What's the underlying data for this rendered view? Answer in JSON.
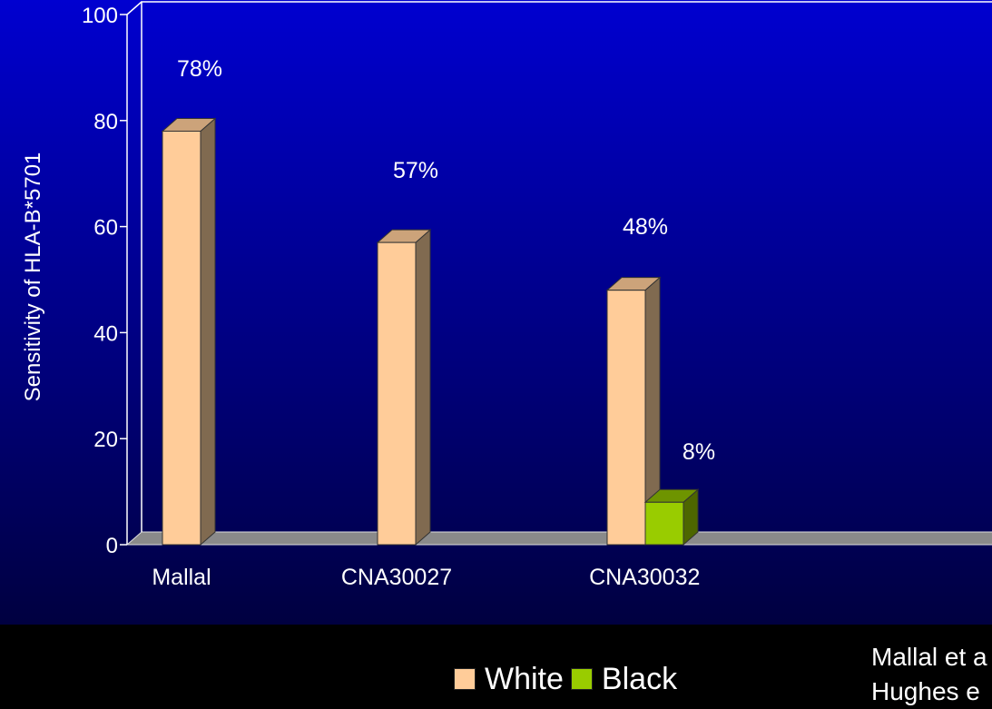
{
  "chart_data": {
    "type": "bar",
    "categories": [
      "Mallal",
      "CNA30027",
      "CNA30032"
    ],
    "series": [
      {
        "name": "White",
        "values": [
          78,
          57,
          48
        ],
        "color": "#FFCC99"
      },
      {
        "name": "Black",
        "values": [
          null,
          null,
          8
        ],
        "color": "#99CC00"
      }
    ],
    "data_labels": [
      "78%",
      "57%",
      "48%",
      "8%"
    ],
    "ylabel": "Sensitivity of HLA-B*5701",
    "xlabel": "",
    "yticks": [
      0,
      20,
      40,
      60,
      80,
      100
    ],
    "ylim": [
      0,
      100
    ],
    "grid": false,
    "legend_position": "bottom",
    "style": "3d"
  },
  "legend": {
    "white_label": "White",
    "black_label": "Black"
  },
  "citation": {
    "line1": "Mallal et a",
    "line2": "Hughes e"
  },
  "colors": {
    "background_top": "#0000CC",
    "background_bottom": "#000033",
    "white_bar": "#FFCC99",
    "white_bar_side": "#806A50",
    "black_bar": "#99CC00",
    "black_bar_side": "#4D6600"
  }
}
